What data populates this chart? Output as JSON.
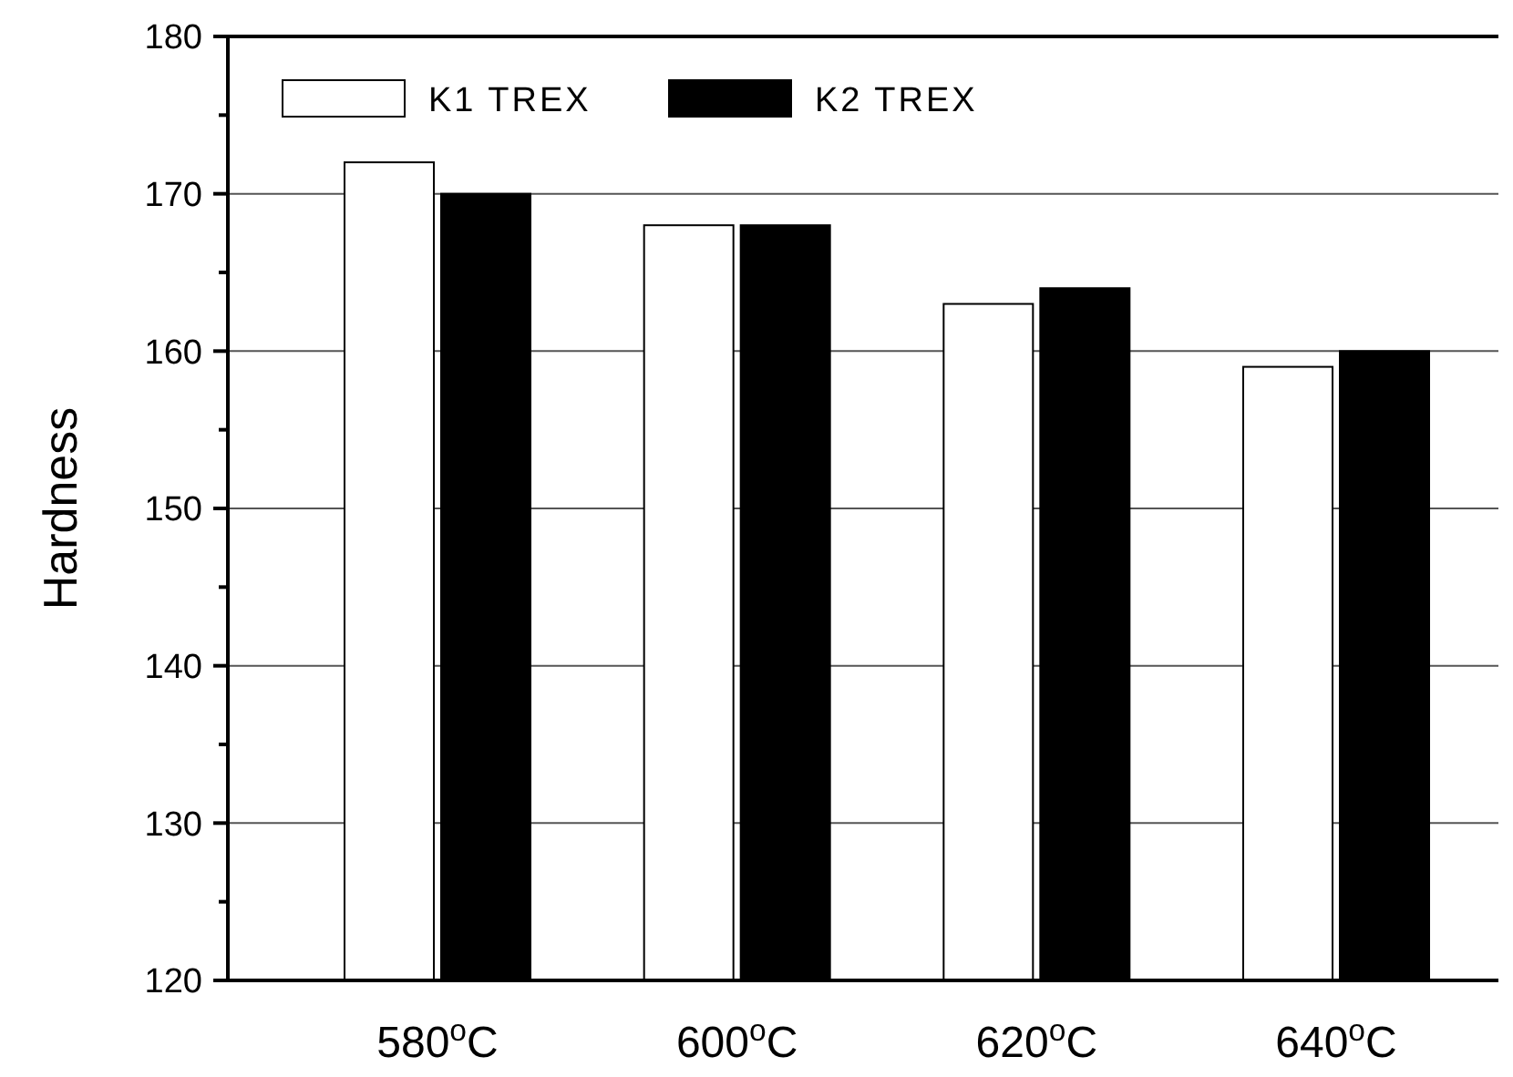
{
  "chart_data": {
    "type": "bar",
    "ylabel": "Hardness",
    "categories": [
      "580$^{o}$C",
      "600$^{o}$C",
      "620$^{o}$C",
      "640$^{o}$C"
    ],
    "series": [
      {
        "name": "K1 TREX",
        "color": "#ffffff",
        "values": [
          172,
          168,
          163,
          159
        ]
      },
      {
        "name": "K2 TREX",
        "color": "#000000",
        "values": [
          170,
          168,
          164,
          160
        ]
      }
    ],
    "ylim": [
      120,
      180
    ],
    "yticks": [
      120,
      {
        "value": 125,
        "label": null
      },
      130,
      {
        "value": 135,
        "label": null
      },
      140,
      {
        "value": 145,
        "label": null
      },
      150,
      {
        "value": 155,
        "label": null
      },
      160,
      {
        "value": 165,
        "label": null
      },
      170,
      {
        "value": 175,
        "label": null
      },
      180
    ],
    "grid": "y",
    "legend": "top left"
  }
}
